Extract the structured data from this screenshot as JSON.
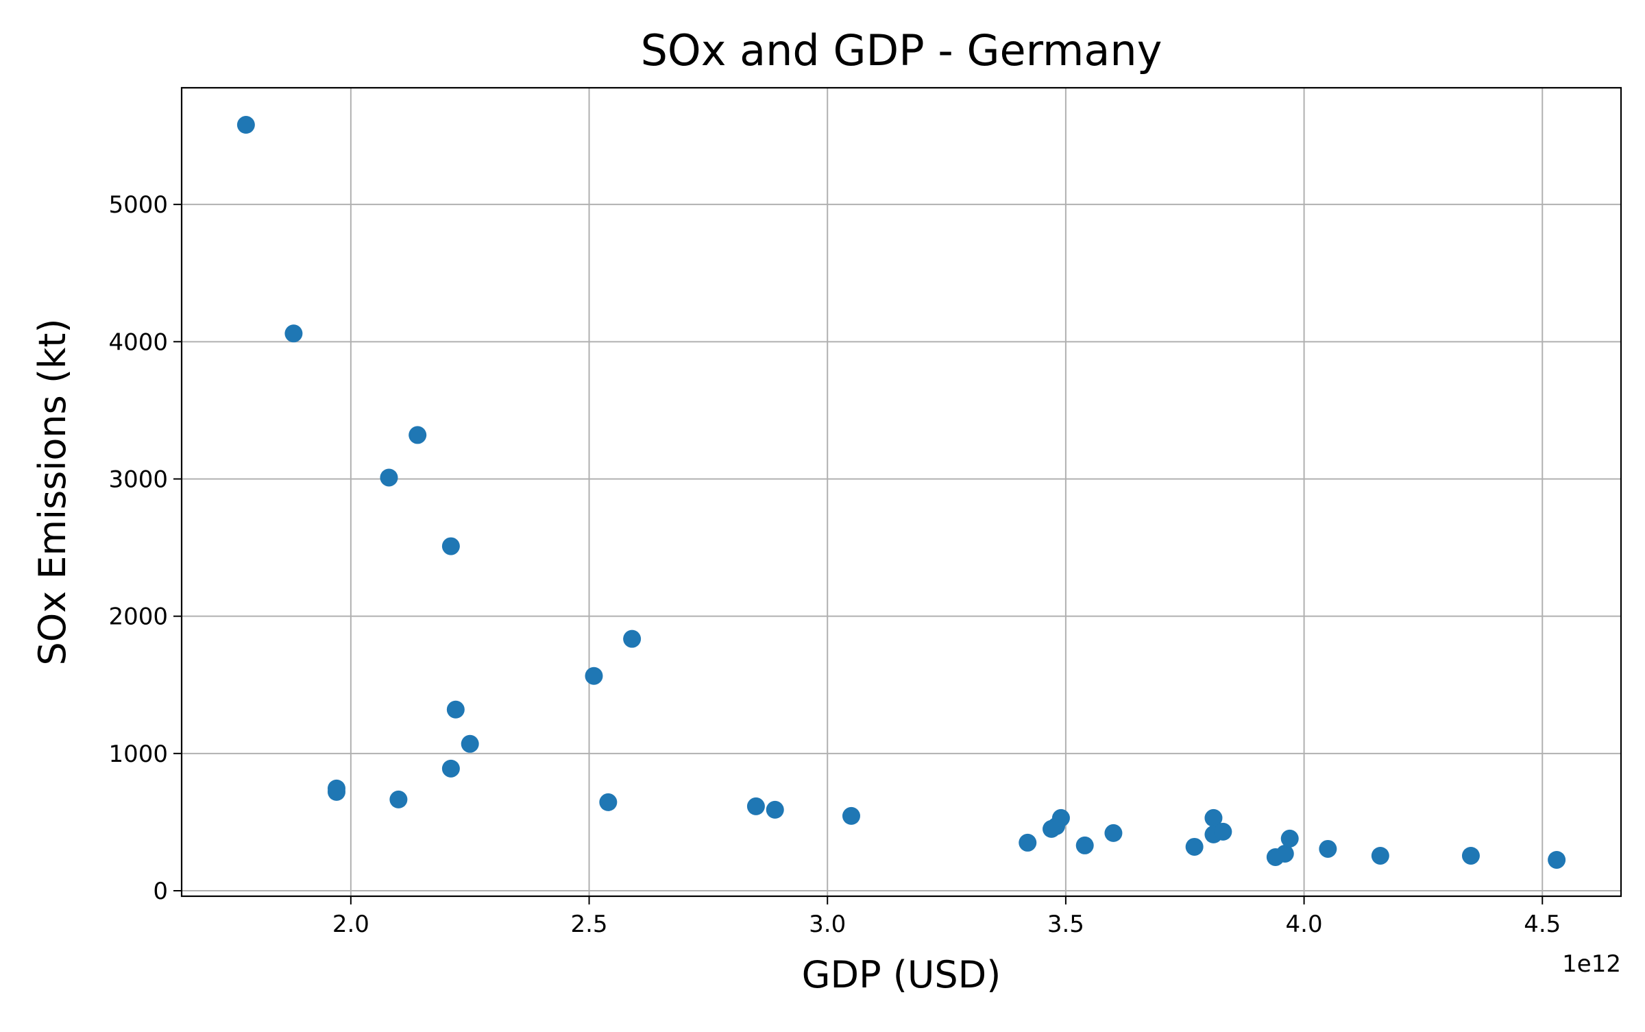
{
  "chart_data": {
    "type": "scatter",
    "title": "SOx and GDP - Germany",
    "xlabel": "GDP (USD)",
    "ylabel": "SOx Emissions (kt)",
    "x_offset_label": "1e12",
    "xlim": [
      1.645,
      4.665
    ],
    "ylim": [
      -40,
      5850
    ],
    "x_ticks": [
      2.0,
      2.5,
      3.0,
      3.5,
      4.0,
      4.5
    ],
    "x_tick_labels": [
      "2.0",
      "2.5",
      "3.0",
      "3.5",
      "4.0",
      "4.5"
    ],
    "y_ticks": [
      0,
      1000,
      2000,
      3000,
      4000,
      5000
    ],
    "y_tick_labels": [
      "0",
      "1000",
      "2000",
      "3000",
      "4000",
      "5000"
    ],
    "grid": true,
    "marker_color": "#1f77b4",
    "series": [
      {
        "points": [
          {
            "x": 1.78,
            "y": 5580
          },
          {
            "x": 1.88,
            "y": 4060
          },
          {
            "x": 1.97,
            "y": 720
          },
          {
            "x": 1.97,
            "y": 745
          },
          {
            "x": 2.08,
            "y": 3010
          },
          {
            "x": 2.1,
            "y": 665
          },
          {
            "x": 2.14,
            "y": 3320
          },
          {
            "x": 2.21,
            "y": 2510
          },
          {
            "x": 2.21,
            "y": 890
          },
          {
            "x": 2.22,
            "y": 1320
          },
          {
            "x": 2.25,
            "y": 1070
          },
          {
            "x": 2.51,
            "y": 1565
          },
          {
            "x": 2.54,
            "y": 645
          },
          {
            "x": 2.59,
            "y": 1835
          },
          {
            "x": 2.85,
            "y": 615
          },
          {
            "x": 2.89,
            "y": 590
          },
          {
            "x": 3.05,
            "y": 545
          },
          {
            "x": 3.42,
            "y": 350
          },
          {
            "x": 3.47,
            "y": 450
          },
          {
            "x": 3.48,
            "y": 470
          },
          {
            "x": 3.49,
            "y": 530
          },
          {
            "x": 3.54,
            "y": 330
          },
          {
            "x": 3.6,
            "y": 420
          },
          {
            "x": 3.77,
            "y": 320
          },
          {
            "x": 3.81,
            "y": 530
          },
          {
            "x": 3.81,
            "y": 410
          },
          {
            "x": 3.83,
            "y": 430
          },
          {
            "x": 3.94,
            "y": 245
          },
          {
            "x": 3.96,
            "y": 270
          },
          {
            "x": 3.97,
            "y": 380
          },
          {
            "x": 4.05,
            "y": 305
          },
          {
            "x": 4.16,
            "y": 255
          },
          {
            "x": 4.35,
            "y": 255
          },
          {
            "x": 4.53,
            "y": 225
          }
        ]
      }
    ]
  }
}
